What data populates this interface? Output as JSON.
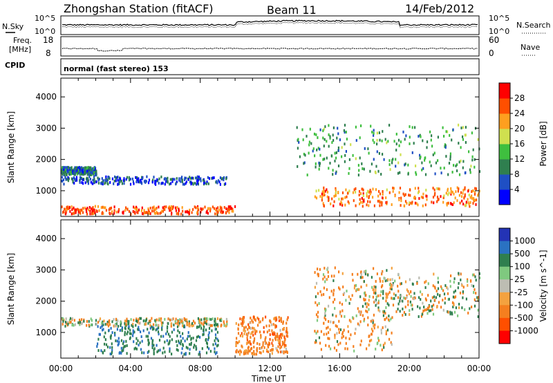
{
  "header": {
    "station": "Zhongshan Station (fitACF)",
    "beam": "Beam 11",
    "date": "14/Feb/2012"
  },
  "strip_labels": {
    "nsky": "N.Sky",
    "nsearch": "N.Search",
    "freq_line1": "Freq.",
    "freq_line2": "[MHz]",
    "nave": "Nave",
    "cpid": "CPID",
    "cpid_value": "normal (fast stereo) 153",
    "noise_ticks_left": [
      "10^5",
      "10^0"
    ],
    "noise_ticks_right": [
      "10^5",
      "10^0"
    ],
    "freq_ticks": [
      "18",
      "8"
    ],
    "nave_ticks": [
      "60",
      "0"
    ]
  },
  "chart_data": [
    {
      "type": "heatmap",
      "title": "",
      "xlabel": "",
      "ylabel": "Slant Range [km]",
      "x_ticks": [
        "00:00",
        "04:00",
        "08:00",
        "12:00",
        "16:00",
        "20:00",
        "00:00"
      ],
      "xlim_hours": [
        0,
        24
      ],
      "y_ticks": [
        1000,
        2000,
        3000,
        4000
      ],
      "ylim_km": [
        180,
        4600
      ],
      "colorbar_label": "Power [dB]",
      "colorbar_ticks": [
        4,
        8,
        12,
        16,
        20,
        24,
        28
      ],
      "colorbar_colors": [
        "#0000ff",
        "#1f4fc4",
        "#2f7f4f",
        "#3fbf3f",
        "#cfe04f",
        "#ff9f1f",
        "#ff4f00",
        "#ff0000"
      ],
      "features": [
        {
          "desc": "strong near-range echoes",
          "hours": [
            0,
            10
          ],
          "range_km": [
            250,
            500
          ],
          "level_db": 28
        },
        {
          "desc": "band near 1300 km",
          "hours": [
            0,
            9.5
          ],
          "range_km": [
            1200,
            1450
          ],
          "level_db": 8
        },
        {
          "desc": "band near 1650 km",
          "hours": [
            0,
            2
          ],
          "range_km": [
            1500,
            1750
          ],
          "level_db": 10
        },
        {
          "desc": "enhanced ~800 km",
          "hours": [
            14.5,
            24
          ],
          "range_km": [
            500,
            1100
          ],
          "level_db": 26
        },
        {
          "desc": "patchy upper echoes",
          "hours": [
            13.5,
            24
          ],
          "range_km": [
            1500,
            3100
          ],
          "level_db": 14
        }
      ]
    },
    {
      "type": "heatmap",
      "title": "",
      "xlabel": "Time UT",
      "ylabel": "Slant Range [km]",
      "x_ticks": [
        "00:00",
        "04:00",
        "08:00",
        "12:00",
        "16:00",
        "20:00",
        "00:00"
      ],
      "xlim_hours": [
        0,
        24
      ],
      "y_ticks": [
        1000,
        2000,
        3000,
        4000
      ],
      "ylim_km": [
        180,
        4600
      ],
      "colorbar_label": "Velocity [m s^-1]",
      "colorbar_ticks": [
        1000,
        500,
        100,
        25,
        -25,
        -100,
        -500,
        -1000
      ],
      "colorbar_colors": [
        "#2333b5",
        "#2a72c2",
        "#2f7f4f",
        "#7fc97f",
        "#bdbdb3",
        "#f4a23f",
        "#f57f1f",
        "#ff4f00",
        "#ff0000"
      ],
      "features": [
        {
          "desc": "low-velocity grey band",
          "hours": [
            0,
            9.5
          ],
          "range_km": [
            1200,
            1450
          ],
          "velocity": 0
        },
        {
          "desc": "negative velocities",
          "hours": [
            10,
            13
          ],
          "range_km": [
            300,
            1500
          ],
          "velocity": -300
        },
        {
          "desc": "mixed velocities",
          "hours": [
            14.5,
            19
          ],
          "range_km": [
            400,
            3100
          ],
          "velocity": -150
        },
        {
          "desc": "grey ground scatter",
          "hours": [
            17,
            24
          ],
          "range_km": [
            1500,
            2900
          ],
          "velocity": 0
        },
        {
          "desc": "positive velocities",
          "hours": [
            2,
            9
          ],
          "range_km": [
            300,
            1200
          ],
          "velocity": 400
        }
      ]
    }
  ]
}
